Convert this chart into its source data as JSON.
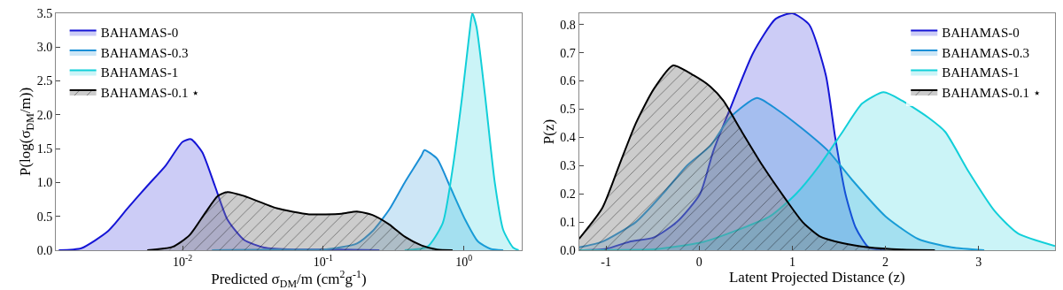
{
  "chart_data": [
    {
      "type": "area",
      "xlabel": "Predicted σ$_{DM}$/m (cm$^{2}$g$^{-1}$)",
      "ylabel": "P(log(σ$_{DM}$/m))",
      "log": "x",
      "grid": false,
      "legend": "top left",
      "xlim": [
        0.00126,
        2.57
      ],
      "xticks": [
        {
          "value": 0.01,
          "label": "10$^{-2}$"
        },
        {
          "value": 0.1,
          "label": "10$^{-1}$"
        },
        {
          "value": 1,
          "label": "10$^{0}$"
        }
      ],
      "ylim": [
        0,
        3.5
      ],
      "yticks": [
        {
          "value": 0,
          "label": "0.0"
        },
        0.5,
        {
          "value": 1,
          "label": "1.0"
        },
        1.5,
        {
          "value": 2,
          "label": "2.0"
        },
        2.5,
        {
          "value": 3,
          "label": "3.0"
        },
        3.5
      ],
      "series": [
        {
          "name": "BAHAMAS-0",
          "color": "#1515d6",
          "x": [
            0.00132,
            0.00191,
            0.00295,
            0.00407,
            0.00562,
            0.00759,
            0.01,
            0.0115,
            0.0138,
            0.017,
            0.0209,
            0.0275,
            0.038,
            0.0617,
            0.135,
            0.251
          ],
          "values": [
            0,
            0.03,
            0.28,
            0.62,
            0.95,
            1.25,
            1.6,
            1.64,
            1.45,
            0.95,
            0.45,
            0.15,
            0.04,
            0.01,
            0.01,
            0
          ]
        },
        {
          "name": "BAHAMAS-0.3",
          "color": "#1a8fd6",
          "x": [
            0.0162,
            0.0468,
            0.102,
            0.174,
            0.224,
            0.295,
            0.38,
            0.501,
            0.525,
            0.646,
            0.794,
            1.023,
            1.259,
            1.549,
            1.905
          ],
          "values": [
            0,
            0.01,
            0.01,
            0.1,
            0.28,
            0.6,
            1.0,
            1.4,
            1.48,
            1.35,
            0.95,
            0.45,
            0.13,
            0.02,
            0
          ]
        },
        {
          "name": "BAHAMAS-1",
          "color": "#12cfd9",
          "x": [
            0.38,
            0.55,
            0.708,
            0.832,
            0.977,
            1.096,
            1.148,
            1.23,
            1.413,
            1.66,
            1.905,
            2.239,
            2.455
          ],
          "values": [
            0,
            0.05,
            0.4,
            1.2,
            2.3,
            3.2,
            3.5,
            3.3,
            2.3,
            1.0,
            0.3,
            0.04,
            0
          ]
        },
        {
          "name": "BAHAMAS-0.1 ⋆",
          "color": "#000000",
          "x": [
            0.00562,
            0.00851,
            0.0112,
            0.0145,
            0.0178,
            0.0209,
            0.0275,
            0.0468,
            0.0794,
            0.135,
            0.174,
            0.224,
            0.295,
            0.38,
            0.501,
            0.646,
            0.832
          ],
          "values": [
            0,
            0.05,
            0.22,
            0.55,
            0.8,
            0.86,
            0.8,
            0.62,
            0.53,
            0.54,
            0.57,
            0.52,
            0.38,
            0.2,
            0.07,
            0.01,
            0
          ]
        }
      ]
    },
    {
      "type": "area",
      "xlabel": "Latent Projected Distance (z)",
      "ylabel": "P(z)",
      "grid": false,
      "legend": "top right",
      "xlim": [
        -1.29,
        3.82
      ],
      "xticks": [
        -1,
        0,
        1,
        2,
        3
      ],
      "ylim": [
        0,
        0.84
      ],
      "yticks": [
        {
          "value": 0,
          "label": "0.0"
        },
        0.1,
        0.2,
        0.3,
        0.4,
        0.5,
        0.6,
        0.7,
        0.8
      ],
      "series": [
        {
          "name": "BAHAMAS-0",
          "color": "#1515d6",
          "x": [
            -1.29,
            -1.0,
            -0.75,
            -0.49,
            -0.24,
            0.01,
            0.15,
            0.33,
            0.58,
            0.82,
            1.0,
            1.18,
            1.36,
            1.46,
            1.57,
            1.68,
            1.82,
            2.0
          ],
          "values": [
            0,
            0.005,
            0.03,
            0.045,
            0.1,
            0.2,
            0.35,
            0.5,
            0.7,
            0.82,
            0.84,
            0.8,
            0.62,
            0.4,
            0.2,
            0.08,
            0.01,
            0
          ]
        },
        {
          "name": "BAHAMAS-0.3",
          "color": "#1a8fd6",
          "x": [
            -1.29,
            -1.04,
            -0.68,
            -0.39,
            -0.13,
            0.12,
            0.33,
            0.62,
            0.83,
            1.11,
            1.39,
            1.64,
            2.0,
            2.35,
            2.71,
            3.06
          ],
          "values": [
            0.01,
            0.03,
            0.1,
            0.2,
            0.3,
            0.37,
            0.47,
            0.54,
            0.5,
            0.43,
            0.35,
            0.25,
            0.12,
            0.04,
            0.01,
            0
          ]
        },
        {
          "name": "BAHAMAS-1",
          "color": "#12cfd9",
          "x": [
            -1.29,
            -0.5,
            -0.31,
            0.05,
            0.4,
            0.76,
            1.04,
            1.29,
            1.54,
            1.75,
            1.98,
            2.18,
            2.46,
            2.64,
            2.89,
            3.17,
            3.42,
            3.82
          ],
          "values": [
            0,
            0.003,
            0.01,
            0.03,
            0.07,
            0.12,
            0.2,
            0.3,
            0.42,
            0.52,
            0.56,
            0.53,
            0.47,
            0.42,
            0.28,
            0.14,
            0.06,
            0.015
          ]
        },
        {
          "name": "BAHAMAS-0.1 ⋆",
          "color": "#000000",
          "x": [
            -1.29,
            -1.04,
            -0.86,
            -0.68,
            -0.49,
            -0.28,
            -0.06,
            0.12,
            0.26,
            0.44,
            0.68,
            0.93,
            1.11,
            1.29,
            1.54,
            1.82,
            2.18,
            2.53
          ],
          "values": [
            0.04,
            0.15,
            0.3,
            0.45,
            0.57,
            0.655,
            0.62,
            0.58,
            0.53,
            0.43,
            0.3,
            0.18,
            0.1,
            0.05,
            0.025,
            0.01,
            0.002,
            0
          ]
        }
      ]
    }
  ]
}
